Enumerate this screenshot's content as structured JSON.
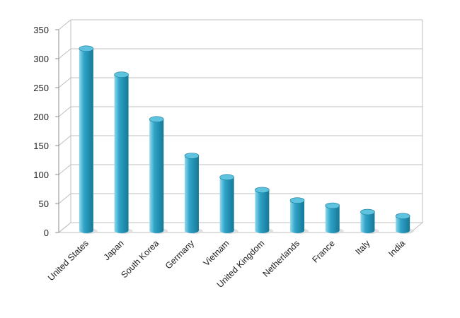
{
  "chart_data": {
    "type": "bar",
    "title": "",
    "xlabel": "",
    "ylabel": "",
    "categories": [
      "United States",
      "Japan",
      "South Korea",
      "Germany",
      "Vietnam",
      "United Kingdom",
      "Netherlands",
      "France",
      "Italy",
      "India"
    ],
    "values": [
      310,
      265,
      188,
      125,
      88,
      66,
      48,
      39,
      28,
      21
    ],
    "ylim": [
      0,
      350
    ],
    "yticks": [
      "0",
      "50",
      "100",
      "150",
      "200",
      "250",
      "300",
      "350"
    ],
    "grid": true,
    "legend": "none",
    "style": "3d-cylinder",
    "colors": {
      "bar_light": "#8fd9ee",
      "bar_main": "#2fa3c7",
      "bar_dark": "#157896",
      "bar_top": "#5ec3df",
      "grid": "#bfbfbf",
      "axis": "#8c8c8c"
    }
  }
}
